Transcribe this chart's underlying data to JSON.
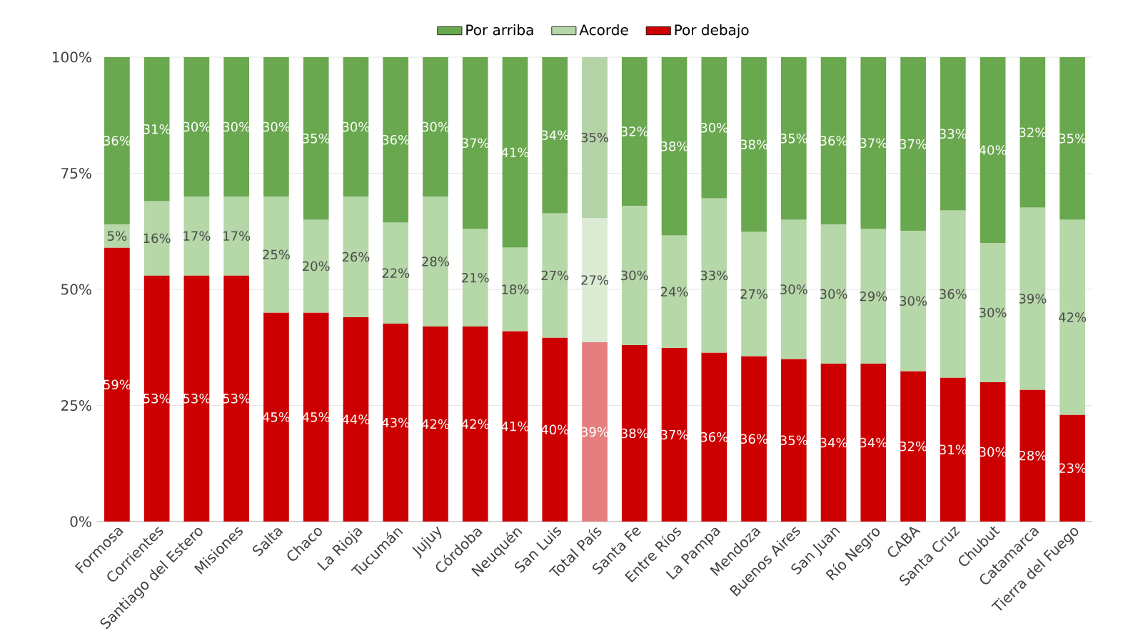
{
  "chart_data": {
    "type": "bar",
    "stacked": true,
    "categories": [
      "Formosa",
      "Corrientes",
      "Santiago del Estero",
      "Misiones",
      "Salta",
      "Chaco",
      "La Rioja",
      "Tucumán",
      "Jujuy",
      "Córdoba",
      "Neuquén",
      "San Luis",
      "Total País",
      "Santa Fe",
      "Entre Ríos",
      "La Pampa",
      "Mendoza",
      "Buenos Aires",
      "San Juan",
      "Río Negro",
      "CABA",
      "Santa Cruz",
      "Chubut",
      "Catamarca",
      "Tierra del Fuego"
    ],
    "series": [
      {
        "name": "Por debajo",
        "color": "#cc0000",
        "colors": [
          "#cc0000",
          "#cc0000",
          "#cc0000",
          "#cc0000",
          "#cc0000",
          "#cc0000",
          "#cc0000",
          "#cc0000",
          "#cc0000",
          "#cc0000",
          "#cc0000",
          "#cc0000",
          "#e57f7f",
          "#cc0000",
          "#cc0000",
          "#cc0000",
          "#cc0000",
          "#cc0000",
          "#cc0000",
          "#cc0000",
          "#cc0000",
          "#cc0000",
          "#cc0000",
          "#cc0000",
          "#cc0000"
        ],
        "values": [
          59,
          53,
          53,
          53,
          45,
          45,
          44,
          42.6,
          42,
          42,
          41,
          39.6,
          38.6,
          38,
          37.4,
          36.4,
          35.6,
          35,
          34,
          34,
          32.4,
          31,
          30,
          28.4,
          23
        ],
        "value_labels": [
          "59%",
          "53%",
          "53%",
          "53%",
          "45%",
          "45%",
          "44%",
          "43%",
          "42%",
          "42%",
          "41%",
          "40%",
          "39%",
          "38%",
          "37%",
          "36%",
          "36%",
          "35%",
          "34%",
          "34%",
          "32%",
          "31%",
          "30%",
          "28%",
          "23%"
        ]
      },
      {
        "name": "Acorde",
        "color": "#b6d7a8",
        "colors": [
          "#b6d7a8",
          "#b6d7a8",
          "#b6d7a8",
          "#b6d7a8",
          "#b6d7a8",
          "#b6d7a8",
          "#b6d7a8",
          "#b6d7a8",
          "#b6d7a8",
          "#b6d7a8",
          "#b6d7a8",
          "#b6d7a8",
          "#dbebd4",
          "#b6d7a8",
          "#b6d7a8",
          "#b6d7a8",
          "#b6d7a8",
          "#b6d7a8",
          "#b6d7a8",
          "#b6d7a8",
          "#b6d7a8",
          "#b6d7a8",
          "#b6d7a8",
          "#b6d7a8",
          "#b6d7a8"
        ],
        "values": [
          5,
          16,
          17,
          17,
          25,
          20,
          26,
          21.8,
          28,
          21,
          18,
          26.8,
          26.8,
          30,
          24.2,
          33.2,
          26.8,
          30,
          30,
          29,
          30.2,
          36,
          30,
          39.2,
          42
        ],
        "value_labels": [
          "5%",
          "16%",
          "17%",
          "17%",
          "25%",
          "20%",
          "26%",
          "22%",
          "28%",
          "21%",
          "18%",
          "27%",
          "27%",
          "30%",
          "24%",
          "33%",
          "27%",
          "30%",
          "30%",
          "29%",
          "30%",
          "36%",
          "30%",
          "39%",
          "42%"
        ]
      },
      {
        "name": "Por arriba",
        "color": "#6aa84f",
        "colors": [
          "#6aa84f",
          "#6aa84f",
          "#6aa84f",
          "#6aa84f",
          "#6aa84f",
          "#6aa84f",
          "#6aa84f",
          "#6aa84f",
          "#6aa84f",
          "#6aa84f",
          "#6aa84f",
          "#6aa84f",
          "#b4d3a7",
          "#6aa84f",
          "#6aa84f",
          "#6aa84f",
          "#6aa84f",
          "#6aa84f",
          "#6aa84f",
          "#6aa84f",
          "#6aa84f",
          "#6aa84f",
          "#6aa84f",
          "#6aa84f",
          "#6aa84f"
        ],
        "values": [
          36,
          31,
          30,
          30,
          30,
          35,
          30,
          35.6,
          30,
          37,
          41,
          33.6,
          34.6,
          32,
          38.4,
          30.4,
          37.6,
          35,
          36,
          37,
          37.4,
          33,
          40,
          32.4,
          35
        ],
        "value_labels": [
          "36%",
          "31%",
          "30%",
          "30%",
          "30%",
          "35%",
          "30%",
          "36%",
          "30%",
          "37%",
          "41%",
          "34%",
          "35%",
          "32%",
          "38%",
          "30%",
          "38%",
          "35%",
          "36%",
          "37%",
          "37%",
          "33%",
          "40%",
          "32%",
          "35%"
        ]
      }
    ],
    "ylim": [
      0,
      100
    ],
    "yticks": [
      {
        "value": 0,
        "label": "0%"
      },
      {
        "value": 25,
        "label": "25%"
      },
      {
        "value": 50,
        "label": "50%"
      },
      {
        "value": 75,
        "label": "75%"
      },
      {
        "value": 100,
        "label": "100%"
      }
    ],
    "grid": "y",
    "legend": "top"
  }
}
